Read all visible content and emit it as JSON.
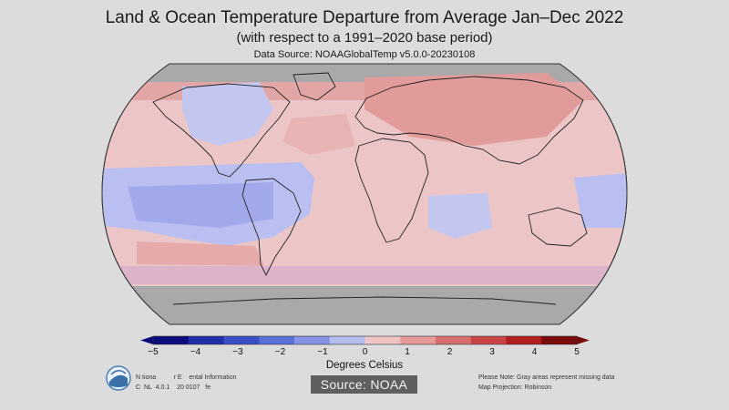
{
  "header": {
    "title": "Land & Ocean Temperature Departure from Average Jan–Dec 2022",
    "subtitle": "(with respect to a 1991–2020 base period)",
    "data_source": "Data Source: NOAAGlobalTemp v5.0.0-20230108"
  },
  "map": {
    "projection": "Robinson",
    "missing_color": "#a9a9a9"
  },
  "colorbar": {
    "ticks": [
      "−5",
      "−4",
      "−3",
      "−2",
      "−1",
      "0",
      "1",
      "2",
      "3",
      "4",
      "5"
    ],
    "label": "Degrees Celsius",
    "min": -5,
    "max": 5,
    "colors_negative": [
      "#0b0b7a",
      "#1f2fa8",
      "#3a4fc6",
      "#5a6fd8",
      "#8792e4",
      "#b4bcee"
    ],
    "colors_positive": [
      "#efc4c4",
      "#e59999",
      "#d86f6f",
      "#c94545",
      "#b21d1d",
      "#7a0b0b"
    ]
  },
  "footer": {
    "left_line1": "N tiona          r E    ental Information",
    "left_line2": "C  NL  4.0.1    20 0107   fe",
    "right_line1": "Please Note: Gray areas represent missing data",
    "right_line2": "Map Projection: Robinson",
    "badge": "Source: NOAA"
  }
}
